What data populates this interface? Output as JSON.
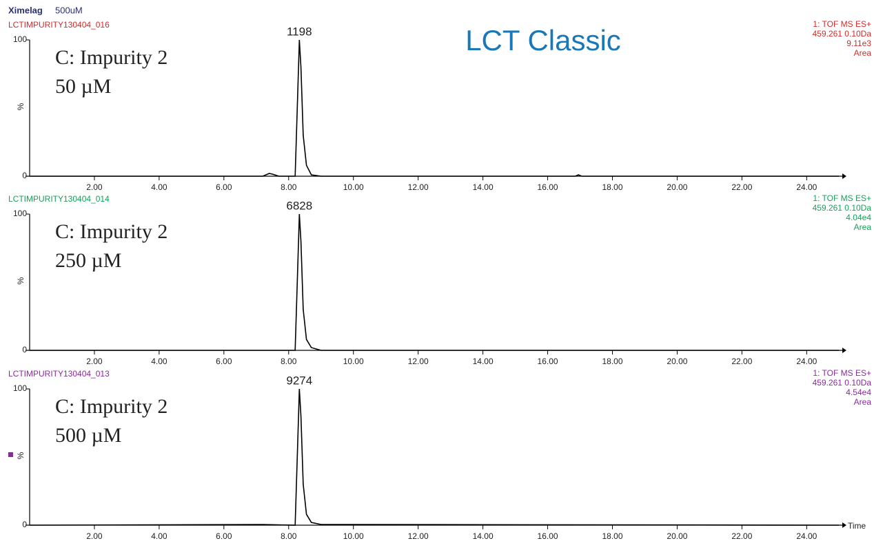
{
  "header": {
    "sample": "Ximelag",
    "concentration": "500uM"
  },
  "title": "LCT Classic",
  "chart_data": [
    {
      "type": "line",
      "file": "LCTIMPURITY130404_016",
      "color": "#d42a2a",
      "line_color": "#000000",
      "info": [
        "1: TOF MS ES+",
        "459.261 0.10Da",
        "9.11e3",
        "Area"
      ],
      "peak_label": "1198",
      "annotation": [
        "C: Impurity 2",
        "50 µM"
      ],
      "ylabel": "%",
      "x": [
        0.0,
        7.2,
        7.4,
        7.5,
        7.7,
        8.2,
        8.28,
        8.33,
        8.38,
        8.45,
        8.55,
        8.7,
        9.0,
        16.85,
        16.95,
        17.05,
        25.0
      ],
      "values": [
        0,
        0,
        2,
        1.5,
        0,
        0,
        60,
        100,
        80,
        30,
        8,
        1,
        0,
        0,
        1,
        0,
        0
      ],
      "xlim": [
        0,
        25.1
      ],
      "ylim": [
        0,
        100
      ],
      "xticks": [
        {
          "value": 2,
          "label": "2.00"
        },
        {
          "value": 4,
          "label": "4.00"
        },
        {
          "value": 6,
          "label": "6.00"
        },
        {
          "value": 8,
          "label": "8.00"
        },
        {
          "value": 10,
          "label": "10.00"
        },
        {
          "value": 12,
          "label": "12.00"
        },
        {
          "value": 14,
          "label": "14.00"
        },
        {
          "value": 16,
          "label": "16.00"
        },
        {
          "value": 18,
          "label": "18.00"
        },
        {
          "value": 20,
          "label": "20.00"
        },
        {
          "value": 22,
          "label": "22.00"
        },
        {
          "value": 24,
          "label": "24.00"
        }
      ],
      "yticks": [
        0,
        100
      ]
    },
    {
      "type": "line",
      "file": "LCTIMPURITY130404_014",
      "color": "#17a05a",
      "line_color": "#000000",
      "info": [
        "1: TOF MS ES+",
        "459.261 0.10Da",
        "4.04e4",
        "Area"
      ],
      "peak_label": "6828",
      "annotation": [
        "C: Impurity 2",
        "250 µM"
      ],
      "ylabel": "%",
      "x": [
        0.0,
        8.2,
        8.28,
        8.33,
        8.38,
        8.45,
        8.55,
        8.7,
        9.0,
        25.0
      ],
      "values": [
        0,
        0,
        60,
        100,
        80,
        30,
        8,
        2,
        0,
        0
      ],
      "xlim": [
        0,
        25.1
      ],
      "ylim": [
        0,
        100
      ],
      "xticks": [
        {
          "value": 2,
          "label": "2.00"
        },
        {
          "value": 4,
          "label": "4.00"
        },
        {
          "value": 6,
          "label": "6.00"
        },
        {
          "value": 8,
          "label": "8.00"
        },
        {
          "value": 10,
          "label": "10.00"
        },
        {
          "value": 12,
          "label": "12.00"
        },
        {
          "value": 14,
          "label": "14.00"
        },
        {
          "value": 16,
          "label": "16.00"
        },
        {
          "value": 18,
          "label": "18.00"
        },
        {
          "value": 20,
          "label": "20.00"
        },
        {
          "value": 22,
          "label": "22.00"
        },
        {
          "value": 24,
          "label": "24.00"
        }
      ],
      "yticks": [
        0,
        100
      ]
    },
    {
      "type": "line",
      "file": "LCTIMPURITY130404_013",
      "color": "#8a2a9e",
      "line_color": "#000000",
      "info": [
        "1: TOF MS ES+",
        "459.261 0.10Da",
        "4.54e4",
        "Area"
      ],
      "peak_label": "9274",
      "annotation": [
        "C: Impurity 2",
        "500 µM"
      ],
      "ylabel": "%",
      "xlabel": "Time",
      "x": [
        0.0,
        7.2,
        8.2,
        8.28,
        8.33,
        8.38,
        8.45,
        8.55,
        8.7,
        9.0,
        25.0
      ],
      "values": [
        0,
        0.5,
        0,
        60,
        100,
        80,
        30,
        8,
        2,
        0.5,
        0
      ],
      "xlim": [
        0,
        25.1
      ],
      "ylim": [
        0,
        100
      ],
      "xticks": [
        {
          "value": 2,
          "label": "2.00"
        },
        {
          "value": 4,
          "label": "4.00"
        },
        {
          "value": 6,
          "label": "6.00"
        },
        {
          "value": 8,
          "label": "8.00"
        },
        {
          "value": 10,
          "label": "10.00"
        },
        {
          "value": 12,
          "label": "12.00"
        },
        {
          "value": 14,
          "label": "14.00"
        },
        {
          "value": 16,
          "label": "16.00"
        },
        {
          "value": 18,
          "label": "18.00"
        },
        {
          "value": 20,
          "label": "20.00"
        },
        {
          "value": 22,
          "label": "22.00"
        },
        {
          "value": 24,
          "label": "24.00"
        }
      ],
      "yticks": [
        0,
        100
      ]
    }
  ]
}
